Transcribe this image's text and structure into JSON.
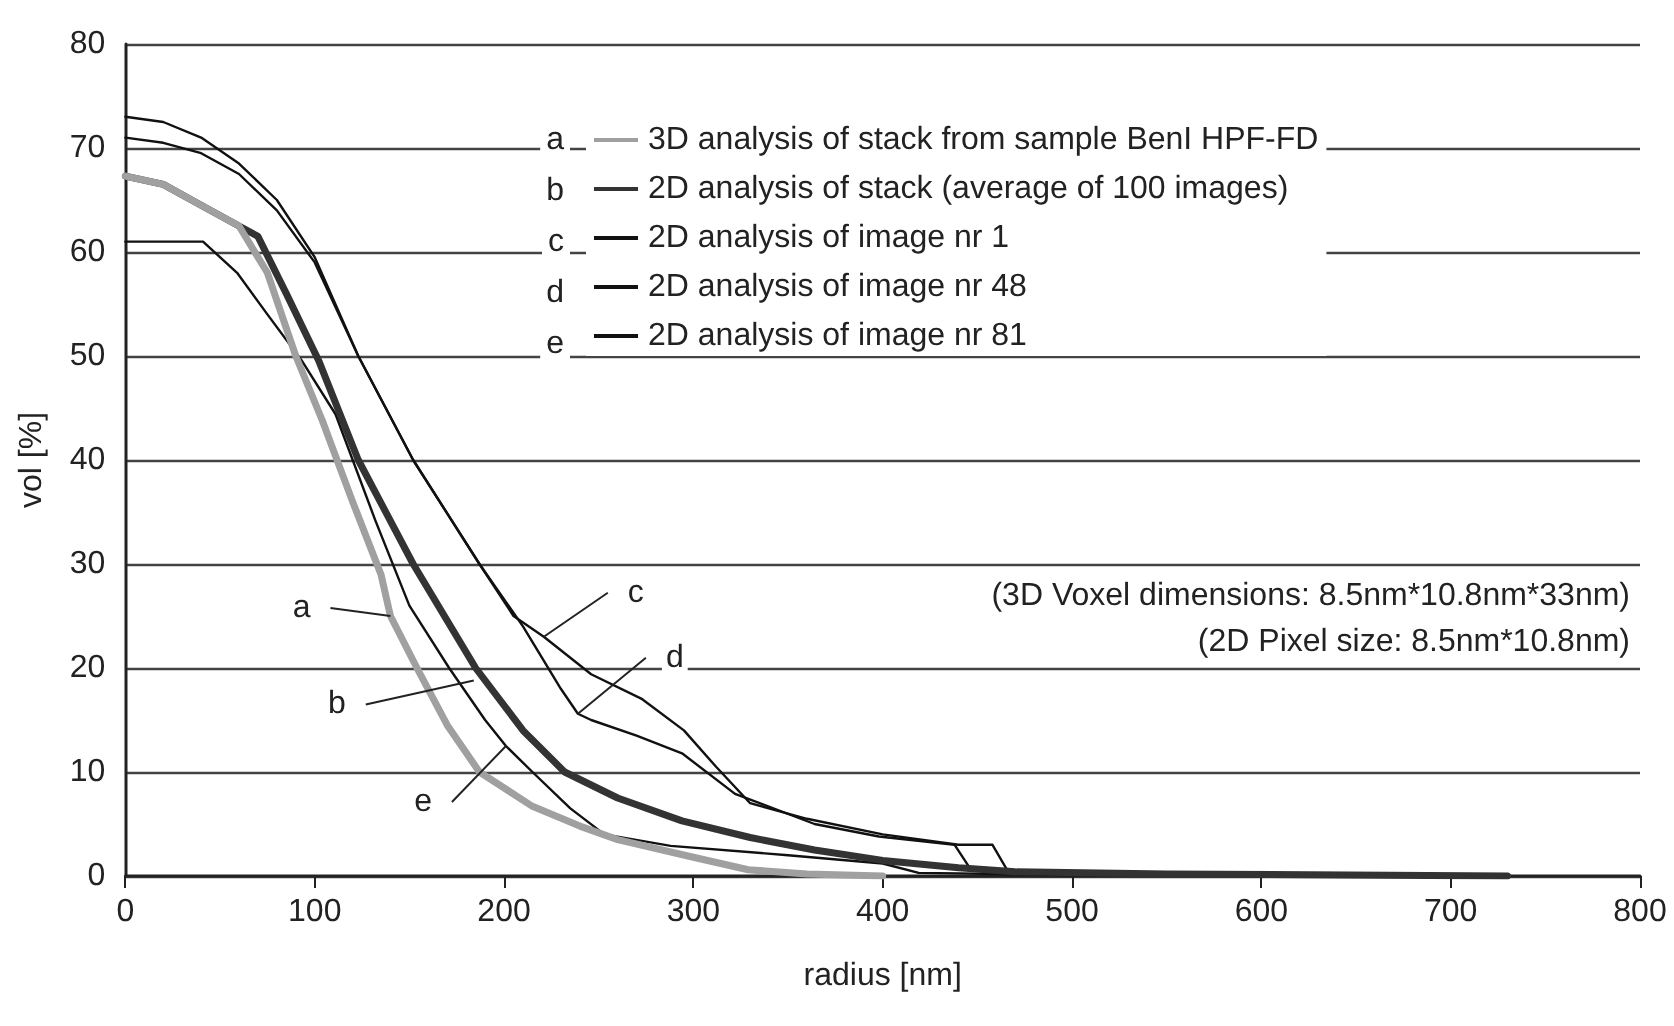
{
  "chart_data": {
    "type": "line",
    "xlabel": "radius [nm]",
    "ylabel": "vol [%]",
    "xlim": [
      0,
      800
    ],
    "xticks": [
      0,
      100,
      200,
      300,
      400,
      500,
      600,
      700,
      800
    ],
    "ylim": [
      0,
      80
    ],
    "yticks": [
      0,
      10,
      20,
      30,
      40,
      50,
      60,
      70,
      80
    ],
    "grid": "y",
    "legend": "top",
    "marker": "none",
    "line_style": "solid",
    "series": [
      {
        "name": "3D analysis of stack from sample BenI HPF-FD",
        "color": "#a0a0a0",
        "x": [
          0,
          20,
          40,
          60,
          75,
          90,
          104,
          120,
          135,
          140,
          154,
          170,
          187,
          215,
          240,
          260,
          300,
          329,
          360,
          400
        ],
        "values": [
          67.3,
          66.5,
          64.5,
          62.5,
          58,
          50,
          43.8,
          36,
          29,
          25,
          20,
          14.5,
          10,
          6.7,
          4.8,
          3.5,
          1.8,
          0.6,
          0.2,
          0
        ]
      },
      {
        "name": "2D analysis of stack (average of 100 images)",
        "color": "#333333",
        "x": [
          0,
          20,
          40,
          60,
          70,
          85,
          102,
          123,
          152,
          185,
          210,
          232,
          260,
          294,
          330,
          364,
          400,
          440,
          470,
          550,
          730
        ],
        "values": [
          67.3,
          66.5,
          64.5,
          62.5,
          61.5,
          56,
          49.6,
          40,
          30,
          20,
          14,
          10,
          7.5,
          5.3,
          3.7,
          2.5,
          1.5,
          0.8,
          0.4,
          0.2,
          0
        ]
      },
      {
        "name": "2D analysis of image nr 1",
        "color": "#111111",
        "x": [
          0,
          20,
          40,
          60,
          80,
          100,
          123,
          152,
          187,
          205,
          221,
          246,
          273,
          295,
          312,
          330,
          360,
          400,
          440,
          458,
          466,
          500,
          600,
          730
        ],
        "values": [
          73,
          72.5,
          71,
          68.5,
          65,
          59.5,
          50,
          40,
          30,
          25,
          23,
          19.4,
          17,
          14,
          10.5,
          7,
          5.5,
          4,
          3,
          3,
          0.5,
          0.3,
          0.1,
          0
        ]
      },
      {
        "name": "2D analysis of image nr 48",
        "color": "#111111",
        "x": [
          0,
          20,
          40,
          60,
          80,
          100,
          123,
          152,
          187,
          210,
          230,
          239,
          246,
          270,
          294,
          322,
          364,
          398,
          438,
          447,
          500,
          600,
          730
        ],
        "values": [
          71,
          70.5,
          69.5,
          67.5,
          64,
          59,
          50,
          40,
          30,
          24,
          18,
          15.6,
          15,
          13.5,
          11.8,
          7.9,
          5,
          3.8,
          3,
          0.5,
          0.3,
          0.1,
          0
        ]
      },
      {
        "name": "2D analysis of image nr 81",
        "color": "#111111",
        "x": [
          0,
          20,
          41,
          59,
          75,
          93,
          111,
          132,
          150,
          171,
          190,
          201,
          215,
          235,
          253,
          288,
          350,
          400,
          419,
          500,
          650
        ],
        "values": [
          61,
          61,
          61,
          58,
          54,
          49.6,
          44.4,
          34.2,
          26,
          20,
          15,
          12.5,
          10,
          6.5,
          4,
          2.9,
          2,
          1.2,
          0.3,
          0.1,
          0
        ]
      }
    ],
    "annotations": [
      {
        "text": "a",
        "x": 140,
        "y": 25
      },
      {
        "text": "b",
        "x": 184,
        "y": 18.8
      },
      {
        "text": "c",
        "x": 221,
        "y": 23
      },
      {
        "text": "d",
        "x": 239,
        "y": 15.6
      },
      {
        "text": "e",
        "x": 201,
        "y": 12.5
      },
      "(3D Voxel dimensions: 8.5nm*10.8nm*33nm)",
      "(2D Pixel size: 8.5nm*10.8nm)"
    ]
  }
}
